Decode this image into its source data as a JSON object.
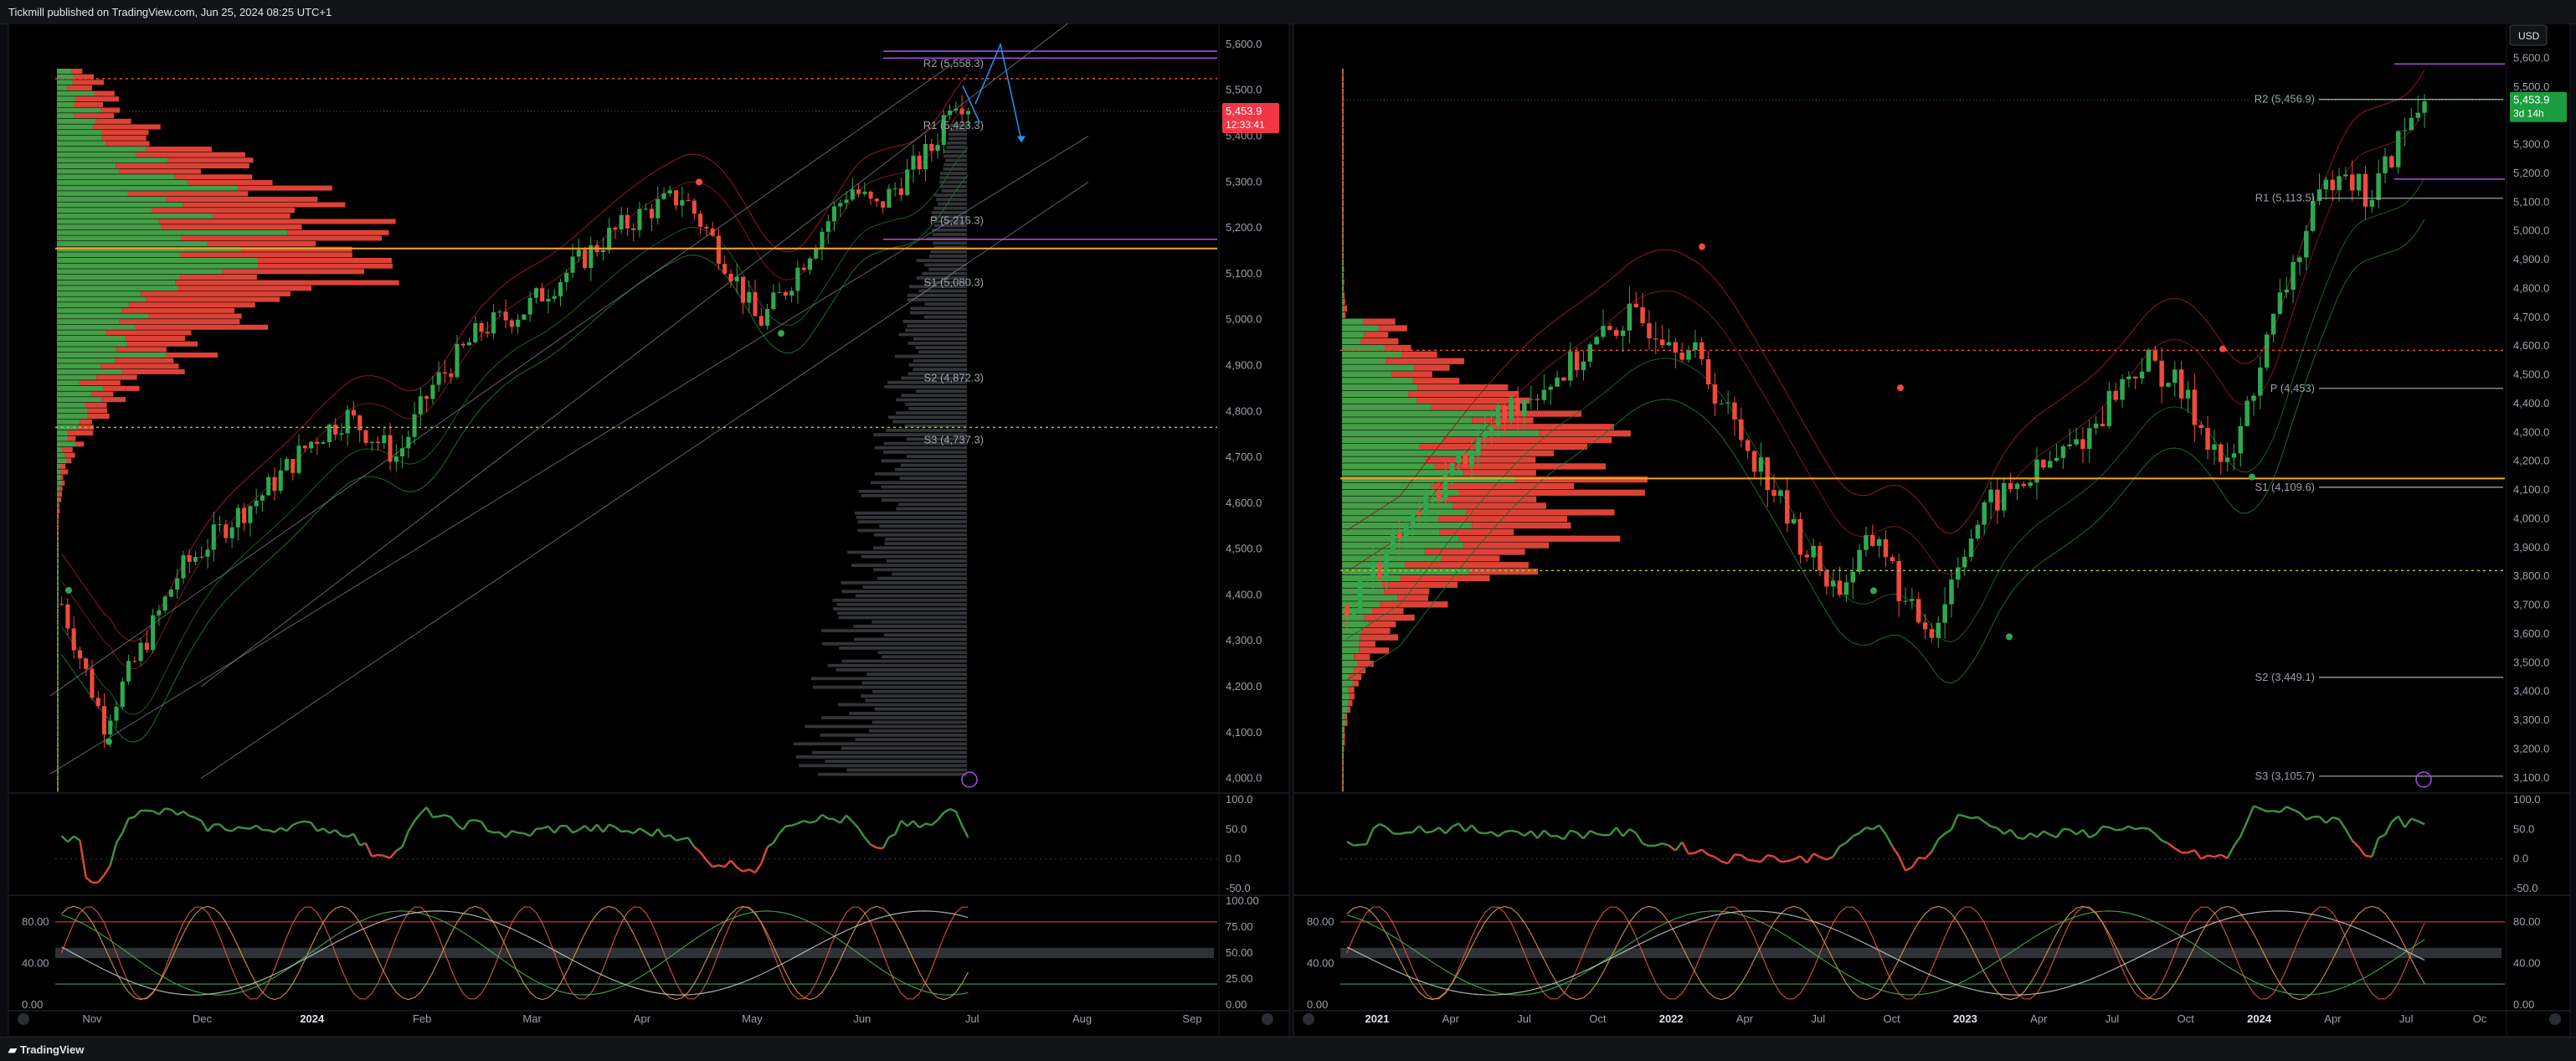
{
  "header": {
    "published": "Tickmill published on TradingView.com, Jun 25, 2024 08:25 UTC+1"
  },
  "footer": {
    "brand": "TradingView",
    "brand_icon": "tradingview-logo-icon"
  },
  "colors": {
    "bull": "#2fa84f",
    "bear": "#f04a3a",
    "vp_bull": "#4caf50",
    "vp_bear": "#f4493c",
    "poc": "#f5a623",
    "pivot": "#9aa0a6",
    "purple": "#b24ee6",
    "price_tag": "#f23645",
    "price_tag_right": "#1a9c3f",
    "rsi_bull": "#3e8e41",
    "rsi_bear": "#d8453a"
  },
  "chart_data": [
    {
      "type": "line",
      "title": "",
      "panel": "left",
      "description_hidden": false,
      "x_ticks": [
        "Nov",
        "Dec",
        "2024",
        "Feb",
        "Mar",
        "Apr",
        "May",
        "Jun",
        "Jul",
        "Aug",
        "Sep"
      ],
      "y_ticks": [
        "5,600.0",
        "5,500.0",
        "5,400.0",
        "5,300.0",
        "5,200.0",
        "5,100.0",
        "5,000.0",
        "4,900.0",
        "4,800.0",
        "4,700.0",
        "4,600.0",
        "4,500.0",
        "4,400.0",
        "4,300.0",
        "4,200.0",
        "4,100.0",
        "4,000.0"
      ],
      "ylim": [
        3970,
        5620
      ],
      "pivots": [
        {
          "label": "R2 (5,558.3)",
          "value": 5558.3
        },
        {
          "label": "R1 (5,423.3)",
          "value": 5423.3
        },
        {
          "label": "P (5,215.3)",
          "value": 5215.3
        },
        {
          "label": "S1 (5,080.3)",
          "value": 5080.3
        },
        {
          "label": "S2 (4,872.3)",
          "value": 4872.3
        },
        {
          "label": "S3 (4,737.3)",
          "value": 4737.3
        }
      ],
      "poc_value": 5155,
      "last_price": "5,453.9",
      "countdown": "12:33:41",
      "price_anchors": [
        [
          0,
          4380
        ],
        [
          5,
          4120
        ],
        [
          10,
          4300
        ],
        [
          14,
          4450
        ],
        [
          20,
          4560
        ],
        [
          24,
          4620
        ],
        [
          30,
          4740
        ],
        [
          34,
          4790
        ],
        [
          40,
          4700
        ],
        [
          44,
          4850
        ],
        [
          50,
          4980
        ],
        [
          55,
          5020
        ],
        [
          60,
          5100
        ],
        [
          65,
          5180
        ],
        [
          70,
          5240
        ],
        [
          74,
          5270
        ],
        [
          77,
          5190
        ],
        [
          80,
          5100
        ],
        [
          83,
          4990
        ],
        [
          86,
          5060
        ],
        [
          90,
          5180
        ],
        [
          94,
          5290
        ],
        [
          97,
          5240
        ],
        [
          100,
          5300
        ],
        [
          104,
          5380
        ],
        [
          106,
          5490
        ],
        [
          108,
          5470
        ]
      ],
      "rsi": {
        "y_ticks": [
          "100.0",
          "50.0",
          "0.0",
          "-50.0"
        ],
        "ylim": [
          -60,
          110
        ]
      },
      "stoch": {
        "y_ticks": [
          "100.00",
          "75.00",
          "50.00",
          "25.00",
          "0.00"
        ],
        "left_ticks": [
          "80.00",
          "40.00",
          "0.00"
        ],
        "ylim": [
          -5,
          105
        ]
      }
    },
    {
      "type": "line",
      "title": "",
      "panel": "right",
      "x_ticks": [
        "2021",
        "Apr",
        "Jul",
        "Oct",
        "2022",
        "Apr",
        "Jul",
        "Oct",
        "2023",
        "Apr",
        "Jul",
        "Oct",
        "2024",
        "Apr",
        "Jul",
        "Oc"
      ],
      "y_ticks": [
        "5,600.0",
        "5,500.0",
        "5,400.0",
        "5,300.0",
        "5,200.0",
        "5,100.0",
        "5,000.0",
        "4,900.0",
        "4,800.0",
        "4,700.0",
        "4,600.0",
        "4,500.0",
        "4,400.0",
        "4,300.0",
        "4,200.0",
        "4,100.0",
        "4,000.0",
        "3,900.0",
        "3,800.0",
        "3,700.0",
        "3,600.0",
        "3,500.0",
        "3,400.0",
        "3,300.0",
        "3,200.0",
        "3,100.0"
      ],
      "ylim": [
        3050,
        5680
      ],
      "pivots": [
        {
          "label": "R2 (5,456.9)",
          "value": 5456.9
        },
        {
          "label": "R1 (5,113.5)",
          "value": 5113.5
        },
        {
          "label": "P (4,453)",
          "value": 4453
        },
        {
          "label": "S1 (4,109.6)",
          "value": 4109.6
        },
        {
          "label": "S2 (3,449.1)",
          "value": 3449.1
        },
        {
          "label": "S3 (3,105.7)",
          "value": 3105.7
        }
      ],
      "poc_value": 4140,
      "last_price": "5,453.9",
      "countdown": "3d 14h",
      "currency": "USD",
      "price_anchors": [
        [
          0,
          3700
        ],
        [
          8,
          3950
        ],
        [
          16,
          4200
        ],
        [
          24,
          4400
        ],
        [
          32,
          4530
        ],
        [
          40,
          4700
        ],
        [
          46,
          4650
        ],
        [
          50,
          4560
        ],
        [
          56,
          4300
        ],
        [
          60,
          4150
        ],
        [
          64,
          3950
        ],
        [
          70,
          3750
        ],
        [
          76,
          3950
        ],
        [
          80,
          3680
        ],
        [
          84,
          3620
        ],
        [
          88,
          3900
        ],
        [
          92,
          4050
        ],
        [
          96,
          4120
        ],
        [
          100,
          4180
        ],
        [
          106,
          4300
        ],
        [
          110,
          4450
        ],
        [
          114,
          4550
        ],
        [
          118,
          4480
        ],
        [
          122,
          4330
        ],
        [
          126,
          4160
        ],
        [
          130,
          4500
        ],
        [
          134,
          4800
        ],
        [
          138,
          5050
        ],
        [
          142,
          5250
        ],
        [
          146,
          5100
        ],
        [
          150,
          5300
        ],
        [
          154,
          5460
        ]
      ],
      "rsi": {
        "y_ticks": [
          "100.0",
          "50.0",
          "0.0",
          "-50.0"
        ],
        "ylim": [
          -60,
          110
        ]
      },
      "stoch": {
        "y_ticks": [
          "80.00",
          "40.00",
          "0.00"
        ],
        "ylim": [
          -5,
          105
        ]
      }
    }
  ]
}
